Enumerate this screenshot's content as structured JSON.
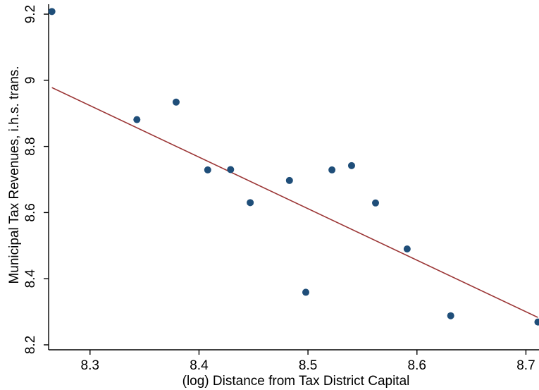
{
  "chart_data": {
    "type": "scatter",
    "xlabel": "(log) Distance from Tax District Capital",
    "ylabel": "Municipal Tax Revenues, i.h.s. trans.",
    "xlim": [
      8.262,
      8.712
    ],
    "ylim": [
      8.185,
      9.23
    ],
    "x_ticks": [
      8.3,
      8.4,
      8.5,
      8.6,
      8.7
    ],
    "x_tick_labels": [
      "8.3",
      "8.4",
      "8.5",
      "8.6",
      "8.7"
    ],
    "y_ticks": [
      8.2,
      8.4,
      8.6,
      8.8,
      9.0,
      9.2
    ],
    "y_tick_labels": [
      "8.2",
      "8.4",
      "8.6",
      "8.8",
      "9",
      "9.2"
    ],
    "grid": false,
    "legend": false,
    "colors": {
      "points": "#1f4e79",
      "fit_line": "#9b3535",
      "axes": "#000000"
    },
    "points": [
      {
        "x": 8.265,
        "y": 9.208
      },
      {
        "x": 8.343,
        "y": 8.881
      },
      {
        "x": 8.379,
        "y": 8.934
      },
      {
        "x": 8.408,
        "y": 8.729
      },
      {
        "x": 8.429,
        "y": 8.73
      },
      {
        "x": 8.447,
        "y": 8.63
      },
      {
        "x": 8.483,
        "y": 8.697
      },
      {
        "x": 8.498,
        "y": 8.359
      },
      {
        "x": 8.522,
        "y": 8.729
      },
      {
        "x": 8.54,
        "y": 8.742
      },
      {
        "x": 8.562,
        "y": 8.629
      },
      {
        "x": 8.591,
        "y": 8.49
      },
      {
        "x": 8.631,
        "y": 8.288
      },
      {
        "x": 8.711,
        "y": 8.269
      }
    ],
    "fit_line": {
      "x": [
        8.265,
        8.711
      ],
      "y": [
        8.978,
        8.283
      ]
    }
  }
}
